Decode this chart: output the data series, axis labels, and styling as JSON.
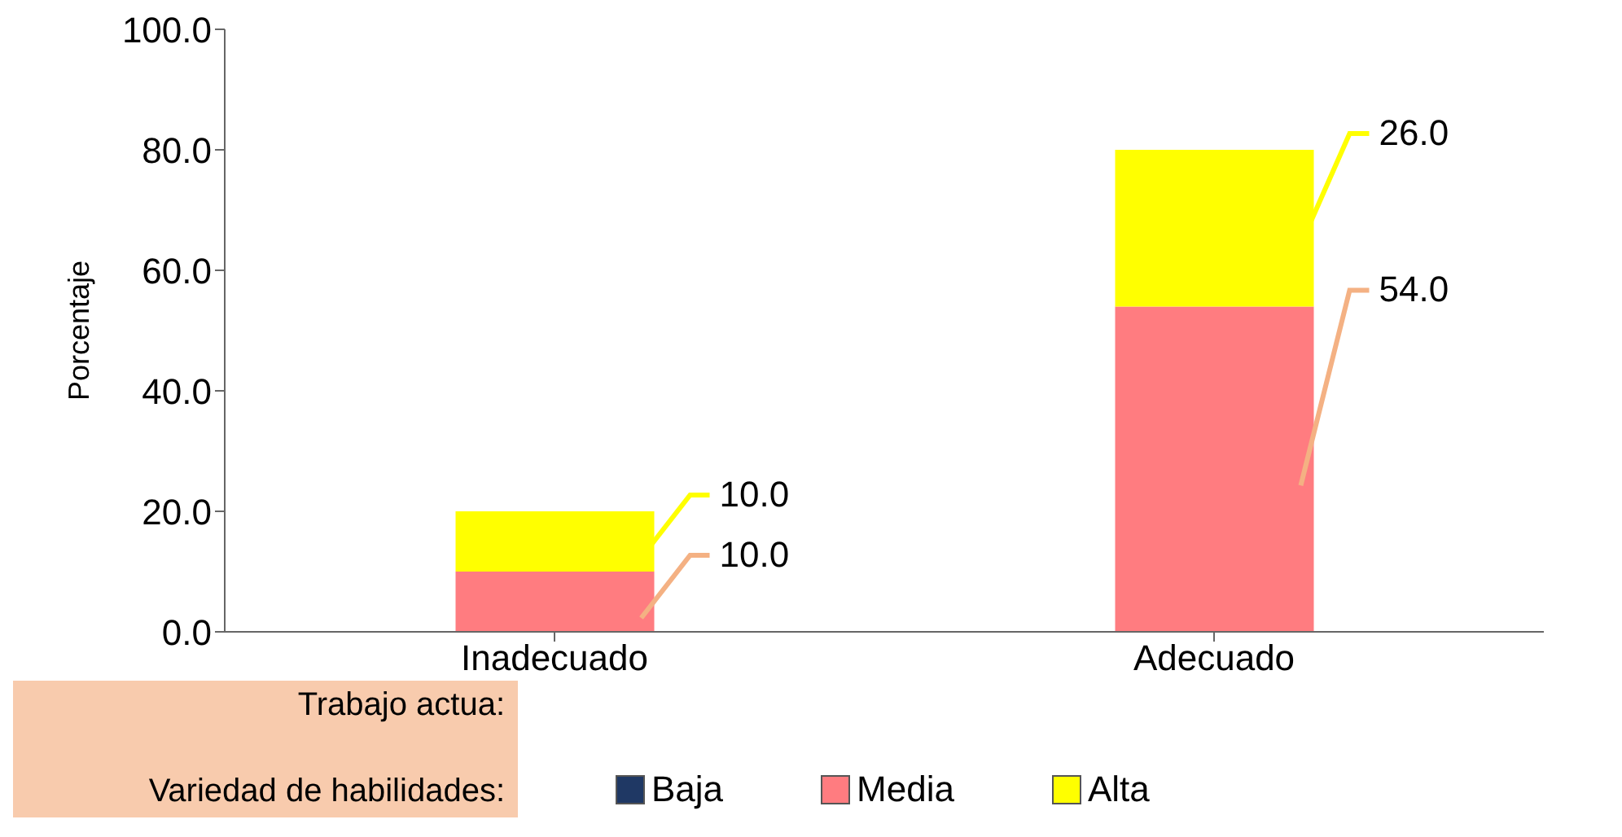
{
  "chart_data": {
    "type": "bar",
    "stacked": true,
    "ylabel": "Porcentaje",
    "xlabel": "Trabajo actua:",
    "legend_title": "Variedad de habilidades:",
    "categories": [
      "Inadecuado",
      "Adecuado"
    ],
    "series": [
      {
        "name": "Baja",
        "color": "#1f3864",
        "values": [
          0,
          0
        ],
        "value_labels": [
          null,
          null
        ]
      },
      {
        "name": "Media",
        "color": "#ff7c80",
        "values": [
          10,
          54
        ],
        "value_labels": [
          "10.0",
          "54.0"
        ]
      },
      {
        "name": "Alta",
        "color": "#ffff00",
        "values": [
          10,
          26
        ],
        "value_labels": [
          "10.0",
          "26.0"
        ]
      }
    ],
    "ylim": [
      0,
      100
    ],
    "yticks": [
      {
        "value": 0,
        "label": "0.0"
      },
      {
        "value": 20,
        "label": "20.0"
      },
      {
        "value": 40,
        "label": "40.0"
      },
      {
        "value": 60,
        "label": "60.0"
      },
      {
        "value": 80,
        "label": "80.0"
      },
      {
        "value": 100,
        "label": "100.0"
      }
    ],
    "grid": false,
    "legend": "bottom"
  }
}
